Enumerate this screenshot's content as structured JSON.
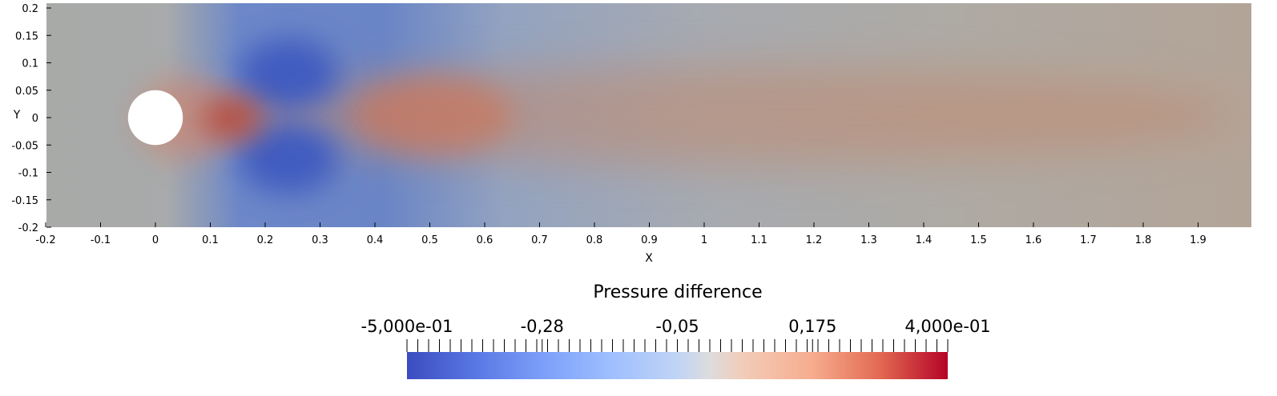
{
  "chart_data": {
    "type": "heatmap",
    "title": "",
    "xlabel": "X",
    "ylabel": "Y",
    "xlim": [
      -0.2,
      2.0
    ],
    "ylim": [
      -0.2,
      0.2
    ],
    "x_ticks": [
      "-0.2",
      "-0.1",
      "0",
      "0.1",
      "0.2",
      "0.3",
      "0.4",
      "0.5",
      "0.6",
      "0.7",
      "0.8",
      "0.9",
      "1",
      "1.1",
      "1.2",
      "1.3",
      "1.4",
      "1.5",
      "1.6",
      "1.7",
      "1.8",
      "1.9"
    ],
    "y_ticks": [
      "0.2",
      "0.15",
      "0.1",
      "0.05",
      "0",
      "-0.05",
      "-0.1",
      "-0.15",
      "-0.2"
    ],
    "obstacle": {
      "shape": "circle",
      "center": [
        0,
        0
      ],
      "radius": 0.05
    },
    "field_features": [
      {
        "name": "stagnation-high",
        "x": 0.14,
        "y": 0.0,
        "value": 0.3
      },
      {
        "name": "upper-low",
        "x": 0.25,
        "y": 0.075,
        "value": -0.45
      },
      {
        "name": "lower-low",
        "x": 0.25,
        "y": -0.075,
        "value": -0.45
      },
      {
        "name": "wake-high",
        "x": 0.5,
        "y": 0.0,
        "value": 0.18
      }
    ],
    "colorbar": {
      "title": "Pressure difference",
      "min": -0.5,
      "max": 0.4,
      "tick_labels": [
        "-5,000e-01",
        "-0,28",
        "-0,05",
        "0,175",
        "4,000e-01"
      ],
      "colormap": "coolwarm"
    }
  },
  "colors": {
    "background_field": "#a9a8a4",
    "low": "#3b4cc0",
    "mid": "#dddcdc",
    "high": "#b40426"
  }
}
